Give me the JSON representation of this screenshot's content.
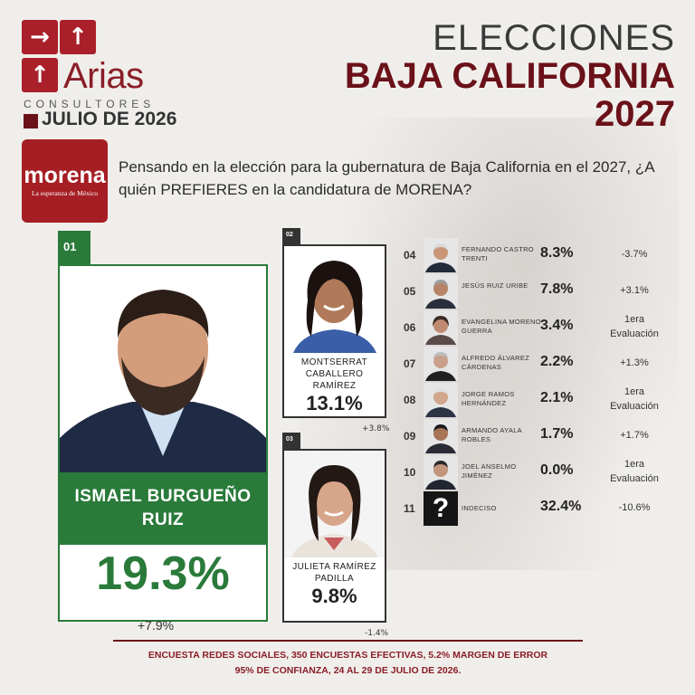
{
  "logo": {
    "brand": "Arias",
    "subtitle": "CONSULTORES",
    "date": "JULIO DE 2026",
    "icon_arrow_right": "→",
    "icon_arrow_up": "↑"
  },
  "title": {
    "line1": "ELECCIONES",
    "line2": "BAJA CALIFORNIA",
    "line3": "2027"
  },
  "party": {
    "name": "morena",
    "slogan": "La esperanza de México",
    "color": "#a51e24"
  },
  "question": "Pensando en la elección para la gubernatura de Baja California en el 2027, ¿A quién PREFIERES en la candidatura de MORENA?",
  "featured": [
    {
      "rank": "01",
      "name": "ISMAEL BURGUEÑO RUIZ",
      "percent": "19.3%",
      "change": "+7.9%"
    },
    {
      "rank": "02",
      "name": "MONTSERRAT CABALLERO RAMÍREZ",
      "percent": "13.1%",
      "change": "+3.8%"
    },
    {
      "rank": "03",
      "name": "JULIETA RAMÍREZ PADILLA",
      "percent": "9.8%",
      "change": "-1.4%"
    }
  ],
  "list": [
    {
      "rank": "04",
      "name": "FERNANDO CASTRO TRENTI",
      "percent": "8.3%",
      "change": "-3.7%"
    },
    {
      "rank": "05",
      "name": "JESÚS RUIZ URIBE",
      "percent": "7.8%",
      "change": "+3.1%"
    },
    {
      "rank": "06",
      "name": "EVANGELINA MORENO GUERRA",
      "percent": "3.4%",
      "change": "1era Evaluación"
    },
    {
      "rank": "07",
      "name": "ALFREDO ÁLVAREZ CÁRDENAS",
      "percent": "2.2%",
      "change": "+1.3%"
    },
    {
      "rank": "08",
      "name": "JORGE RAMOS HERNÁNDEZ",
      "percent": "2.1%",
      "change": "1era Evaluación"
    },
    {
      "rank": "09",
      "name": "ARMANDO AYALA ROBLES",
      "percent": "1.7%",
      "change": "+1.7%"
    },
    {
      "rank": "10",
      "name": "JOEL ANSELMO JIMÉNEZ",
      "percent": "0.0%",
      "change": "1era Evaluación"
    },
    {
      "rank": "11",
      "name": "INDECISO",
      "percent": "32.4%",
      "change": "-10.6%",
      "icon": "?"
    }
  ],
  "footer": {
    "line1": "ENCUESTA REDES SOCIALES, 350 ENCUESTAS EFECTIVAS, 5.2%  MARGEN DE ERROR",
    "line2": "95% DE CONFIANZA, 24 AL 29 DE JULIO DE 2026."
  },
  "colors": {
    "green": "#2a7a3a",
    "maroon": "#6b1119",
    "dark": "#333333"
  }
}
